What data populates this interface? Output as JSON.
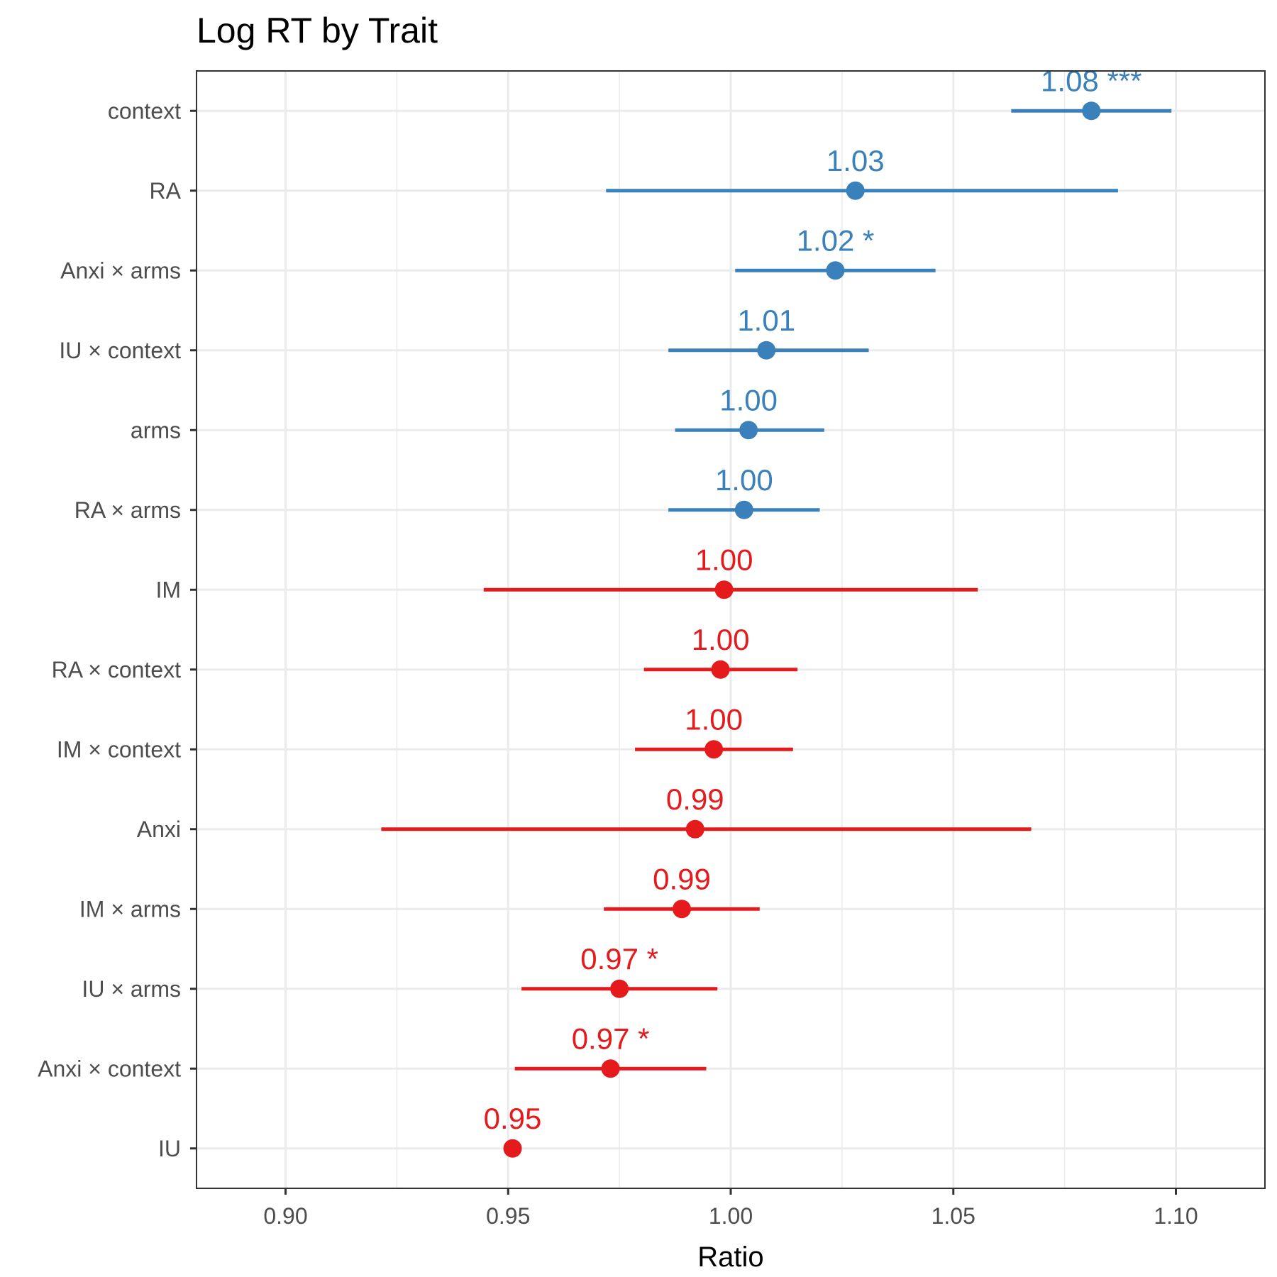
{
  "chart_data": {
    "type": "forest",
    "title": "Log RT by Trait",
    "xlabel": "Ratio",
    "ylabel": "",
    "xlim": [
      0.88,
      1.12
    ],
    "xticks": [
      0.9,
      0.95,
      1.0,
      1.05,
      1.1
    ],
    "xtick_labels": [
      "0.90",
      "0.95",
      "1.00",
      "1.05",
      "1.10"
    ],
    "grid": true,
    "colors": {
      "positive": "#3a80ba",
      "negative": "#e41a1c"
    },
    "rows": [
      {
        "term": "context",
        "estimate": 1.081,
        "lower": 1.063,
        "upper": 1.099,
        "label": "1.08 ***",
        "group": "positive"
      },
      {
        "term": "RA",
        "estimate": 1.028,
        "lower": 0.972,
        "upper": 1.087,
        "label": "1.03",
        "group": "positive"
      },
      {
        "term": "Anxi × arms",
        "estimate": 1.0235,
        "lower": 1.001,
        "upper": 1.046,
        "label": "1.02 *",
        "group": "positive"
      },
      {
        "term": "IU × context",
        "estimate": 1.008,
        "lower": 0.986,
        "upper": 1.031,
        "label": "1.01",
        "group": "positive"
      },
      {
        "term": "arms",
        "estimate": 1.004,
        "lower": 0.9875,
        "upper": 1.021,
        "label": "1.00",
        "group": "positive"
      },
      {
        "term": "RA × arms",
        "estimate": 1.003,
        "lower": 0.986,
        "upper": 1.02,
        "label": "1.00",
        "group": "positive"
      },
      {
        "term": "IM",
        "estimate": 0.9985,
        "lower": 0.9445,
        "upper": 1.0555,
        "label": "1.00",
        "group": "negative"
      },
      {
        "term": "RA × context",
        "estimate": 0.9977,
        "lower": 0.9805,
        "upper": 1.015,
        "label": "1.00",
        "group": "negative"
      },
      {
        "term": "IM × context",
        "estimate": 0.9962,
        "lower": 0.9785,
        "upper": 1.014,
        "label": "1.00",
        "group": "negative"
      },
      {
        "term": "Anxi",
        "estimate": 0.992,
        "lower": 0.9215,
        "upper": 1.0675,
        "label": "0.99",
        "group": "negative"
      },
      {
        "term": "IM × arms",
        "estimate": 0.989,
        "lower": 0.9715,
        "upper": 1.0065,
        "label": "0.99",
        "group": "negative"
      },
      {
        "term": "IU × arms",
        "estimate": 0.975,
        "lower": 0.953,
        "upper": 0.997,
        "label": "0.97 *",
        "group": "negative"
      },
      {
        "term": "Anxi × context",
        "estimate": 0.973,
        "lower": 0.9515,
        "upper": 0.9945,
        "label": "0.97 *",
        "group": "negative"
      },
      {
        "term": "IU",
        "estimate": 0.951,
        "lower": 0.951,
        "upper": 0.951,
        "label": "0.95",
        "group": "negative"
      }
    ]
  }
}
